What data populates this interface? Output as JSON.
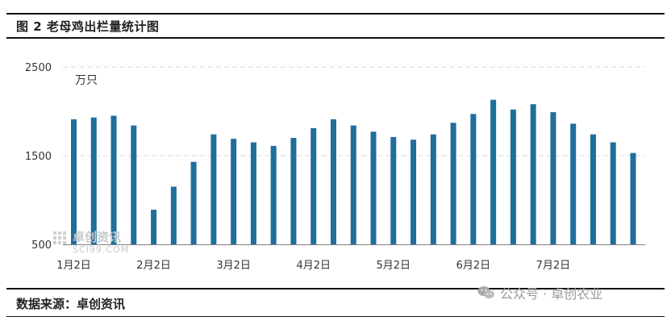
{
  "header": {
    "figure_title": "图 2 老母鸡出栏量统计图"
  },
  "footer": {
    "source": "数据来源：卓创资讯",
    "watermark_text": "公众号 · 卓创农业",
    "watermark_icon": "wechat-icon"
  },
  "chart_watermark": {
    "cn": "卓创资讯",
    "en": "SCI99.COM"
  },
  "chart_data": {
    "type": "bar",
    "unit_label": "万只",
    "ylim": [
      500,
      2500
    ],
    "yticks": [
      500,
      1500,
      2500
    ],
    "grid": true,
    "bar_color": "#1f6e9c",
    "grid_color": "#d9d9d9",
    "x_tick_labels": [
      "1月2日",
      "2月2日",
      "3月2日",
      "4月2日",
      "5月2日",
      "6月2日",
      "7月2日"
    ],
    "series": [
      {
        "values": [
          1910,
          1930,
          1950,
          1840,
          890,
          1150,
          1430,
          1740,
          1690,
          1650,
          1610,
          1700,
          1810,
          1910,
          1840,
          1770,
          1710,
          1680,
          1740,
          1870,
          1970,
          2130,
          2020,
          2080,
          1990,
          1860,
          1740,
          1650,
          1530
        ]
      }
    ]
  }
}
